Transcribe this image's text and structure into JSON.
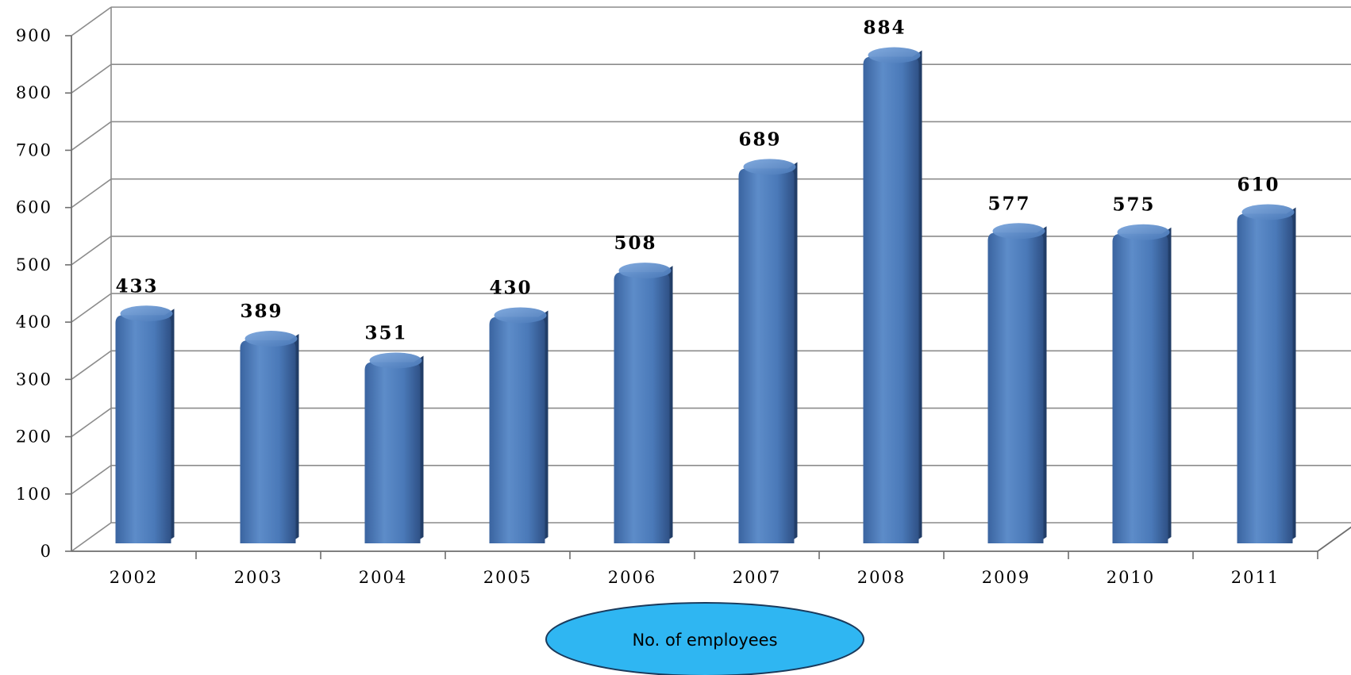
{
  "chart_data": {
    "type": "bar",
    "style": "3d-cylinder",
    "categories": [
      "2002",
      "2003",
      "2004",
      "2005",
      "2006",
      "2007",
      "2008",
      "2009",
      "2010",
      "2011"
    ],
    "series": [
      {
        "name": "No. of employees",
        "values": [
          433,
          389,
          351,
          430,
          508,
          689,
          884,
          577,
          575,
          610
        ],
        "color": "#4a79b8"
      }
    ],
    "data_labels": [
      "433",
      "389",
      "351",
      "430",
      "508",
      "689",
      "884",
      "577",
      "575",
      "610"
    ],
    "y_ticks": [
      "0",
      "100",
      "200",
      "300",
      "400",
      "500",
      "600",
      "700",
      "800",
      "900"
    ],
    "ylim": [
      0,
      900
    ],
    "grid": true,
    "legend": {
      "position": "bottom-center",
      "label": "No. of employees",
      "fill": "#2fb6f2"
    },
    "title": "",
    "xlabel": "",
    "ylabel": ""
  }
}
